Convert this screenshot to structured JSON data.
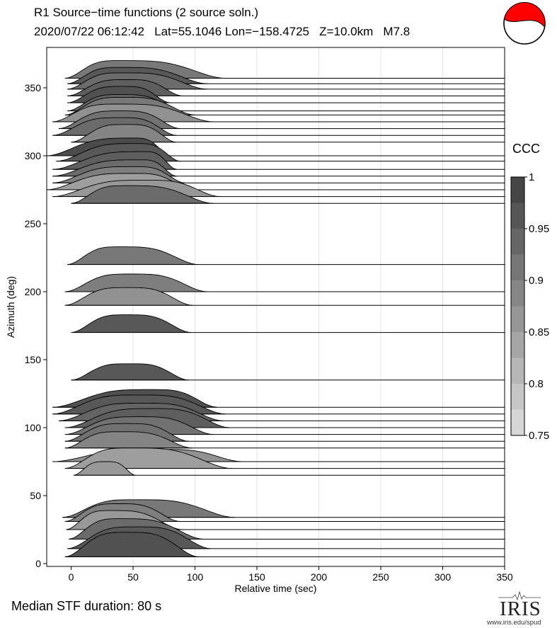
{
  "header": {
    "title_line1": "R1 Source−time functions (2 source soln.)",
    "title_line2": "2020/07/22 06:12:42   Lat=55.1046 Lon=−158.4725   Z=10.0km   M7.8"
  },
  "footer": {
    "median_label": "Median STF duration: 80 s"
  },
  "logo": {
    "text": "IRIS",
    "url_text": "www.iris.edu/spud"
  },
  "beachball": {
    "icon": "focal-mechanism-beachball",
    "compression_color": "#ff0000"
  },
  "colorbar": {
    "title": "CCC",
    "min": 0.75,
    "max": 1.0,
    "tick_labels": [
      "1",
      "0.95",
      "0.9",
      "0.85",
      "0.8",
      "0.75"
    ],
    "tick_values": [
      1.0,
      0.95,
      0.9,
      0.85,
      0.8,
      0.75
    ]
  },
  "chart_data": {
    "type": "area",
    "title": "R1 Source−time functions (2 source soln.)",
    "xlabel": "Relative time (sec)",
    "ylabel": "Azimuth (deg)",
    "xlim": [
      -20,
      350
    ],
    "ylim": [
      -2,
      378
    ],
    "xticks": [
      0,
      50,
      100,
      150,
      200,
      250,
      300,
      350
    ],
    "xtick_labels": [
      "0",
      "50",
      "100",
      "150",
      "200",
      "250",
      "300",
      "350"
    ],
    "yticks": [
      0,
      50,
      100,
      150,
      200,
      250,
      300,
      350
    ],
    "ytick_labels": [
      "0",
      "50",
      "100",
      "150",
      "200",
      "250",
      "300",
      "350"
    ],
    "grid": "vertical",
    "trace_end_time": 350,
    "traces": [
      {
        "azimuth": 5,
        "start": -5,
        "end": 103,
        "peak_time": 45,
        "amplitude": 18,
        "ccc": 0.97
      },
      {
        "azimuth": 11,
        "start": -3,
        "end": 113,
        "peak_time": 52,
        "amplitude": 16,
        "ccc": 0.96
      },
      {
        "azimuth": 18,
        "start": -2,
        "end": 107,
        "peak_time": 40,
        "amplitude": 15,
        "ccc": 0.93
      },
      {
        "azimuth": 25,
        "start": -4,
        "end": 90,
        "peak_time": 32,
        "amplitude": 14,
        "ccc": 0.86
      },
      {
        "azimuth": 31,
        "start": -5,
        "end": 88,
        "peak_time": 38,
        "amplitude": 13,
        "ccc": 0.9
      },
      {
        "azimuth": 34,
        "start": -7,
        "end": 132,
        "peak_time": 52,
        "amplitude": 13,
        "ccc": 0.91
      },
      {
        "azimuth": 65,
        "start": 2,
        "end": 52,
        "peak_time": 28,
        "amplitude": 10,
        "ccc": 0.86
      },
      {
        "azimuth": 70,
        "start": -5,
        "end": 130,
        "peak_time": 48,
        "amplitude": 15,
        "ccc": 0.85
      },
      {
        "azimuth": 75,
        "start": -15,
        "end": 138,
        "peak_time": 72,
        "amplitude": 9,
        "ccc": 0.87
      },
      {
        "azimuth": 85,
        "start": -5,
        "end": 98,
        "peak_time": 40,
        "amplitude": 12,
        "ccc": 0.89
      },
      {
        "azimuth": 90,
        "start": -5,
        "end": 95,
        "peak_time": 45,
        "amplitude": 13,
        "ccc": 0.92
      },
      {
        "azimuth": 95,
        "start": -5,
        "end": 115,
        "peak_time": 55,
        "amplitude": 13,
        "ccc": 0.92
      },
      {
        "azimuth": 100,
        "start": -5,
        "end": 128,
        "peak_time": 65,
        "amplitude": 14,
        "ccc": 0.95
      },
      {
        "azimuth": 105,
        "start": -10,
        "end": 123,
        "peak_time": 58,
        "amplitude": 13,
        "ccc": 0.94
      },
      {
        "azimuth": 110,
        "start": -15,
        "end": 125,
        "peak_time": 55,
        "amplitude": 14,
        "ccc": 0.96
      },
      {
        "azimuth": 115,
        "start": -15,
        "end": 118,
        "peak_time": 65,
        "amplitude": 13,
        "ccc": 0.97
      },
      {
        "azimuth": 135,
        "start": 0,
        "end": 95,
        "peak_time": 47,
        "amplitude": 12,
        "ccc": 0.96
      },
      {
        "azimuth": 170,
        "start": 0,
        "end": 97,
        "peak_time": 45,
        "amplitude": 13,
        "ccc": 0.96
      },
      {
        "azimuth": 190,
        "start": -5,
        "end": 98,
        "peak_time": 45,
        "amplitude": 13,
        "ccc": 0.87
      },
      {
        "azimuth": 200,
        "start": -5,
        "end": 110,
        "peak_time": 48,
        "amplitude": 13,
        "ccc": 0.9
      },
      {
        "azimuth": 220,
        "start": -3,
        "end": 103,
        "peak_time": 40,
        "amplitude": 13,
        "ccc": 0.91
      },
      {
        "azimuth": 265,
        "start": 0,
        "end": 115,
        "peak_time": 45,
        "amplitude": 13,
        "ccc": 0.93
      },
      {
        "azimuth": 270,
        "start": -15,
        "end": 120,
        "peak_time": 60,
        "amplitude": 12,
        "ccc": 0.86
      },
      {
        "azimuth": 275,
        "start": -20,
        "end": 98,
        "peak_time": 50,
        "amplitude": 12,
        "ccc": 0.85
      },
      {
        "azimuth": 280,
        "start": -15,
        "end": 92,
        "peak_time": 50,
        "amplitude": 12,
        "ccc": 0.9
      },
      {
        "azimuth": 285,
        "start": -15,
        "end": 85,
        "peak_time": 55,
        "amplitude": 12,
        "ccc": 0.93
      },
      {
        "azimuth": 290,
        "start": -15,
        "end": 85,
        "peak_time": 58,
        "amplitude": 13,
        "ccc": 0.95
      },
      {
        "azimuth": 296,
        "start": -12,
        "end": 88,
        "peak_time": 52,
        "amplitude": 13,
        "ccc": 0.96
      },
      {
        "azimuth": 300,
        "start": -20,
        "end": 80,
        "peak_time": 50,
        "amplitude": 13,
        "ccc": 0.98
      },
      {
        "azimuth": 310,
        "start": 0,
        "end": 85,
        "peak_time": 45,
        "amplitude": 13,
        "ccc": 0.89
      },
      {
        "azimuth": 315,
        "start": -15,
        "end": 85,
        "peak_time": 40,
        "amplitude": 13,
        "ccc": 0.93
      },
      {
        "azimuth": 320,
        "start": -10,
        "end": 88,
        "peak_time": 40,
        "amplitude": 13,
        "ccc": 0.92
      },
      {
        "azimuth": 325,
        "start": -15,
        "end": 115,
        "peak_time": 38,
        "amplitude": 13,
        "ccc": 0.87
      },
      {
        "azimuth": 330,
        "start": -5,
        "end": 100,
        "peak_time": 42,
        "amplitude": 13,
        "ccc": 0.91
      },
      {
        "azimuth": 333,
        "start": -3,
        "end": 90,
        "peak_time": 40,
        "amplitude": 12,
        "ccc": 0.94
      },
      {
        "azimuth": 339,
        "start": -3,
        "end": 80,
        "peak_time": 42,
        "amplitude": 12,
        "ccc": 0.97
      },
      {
        "azimuth": 344,
        "start": -3,
        "end": 90,
        "peak_time": 45,
        "amplitude": 12,
        "ccc": 0.95
      },
      {
        "azimuth": 349,
        "start": -3,
        "end": 110,
        "peak_time": 42,
        "amplitude": 12,
        "ccc": 0.93
      },
      {
        "azimuth": 353,
        "start": -3,
        "end": 110,
        "peak_time": 40,
        "amplitude": 12,
        "ccc": 0.96
      },
      {
        "azimuth": 357,
        "start": -5,
        "end": 125,
        "peak_time": 40,
        "amplitude": 13,
        "ccc": 0.91
      }
    ]
  }
}
